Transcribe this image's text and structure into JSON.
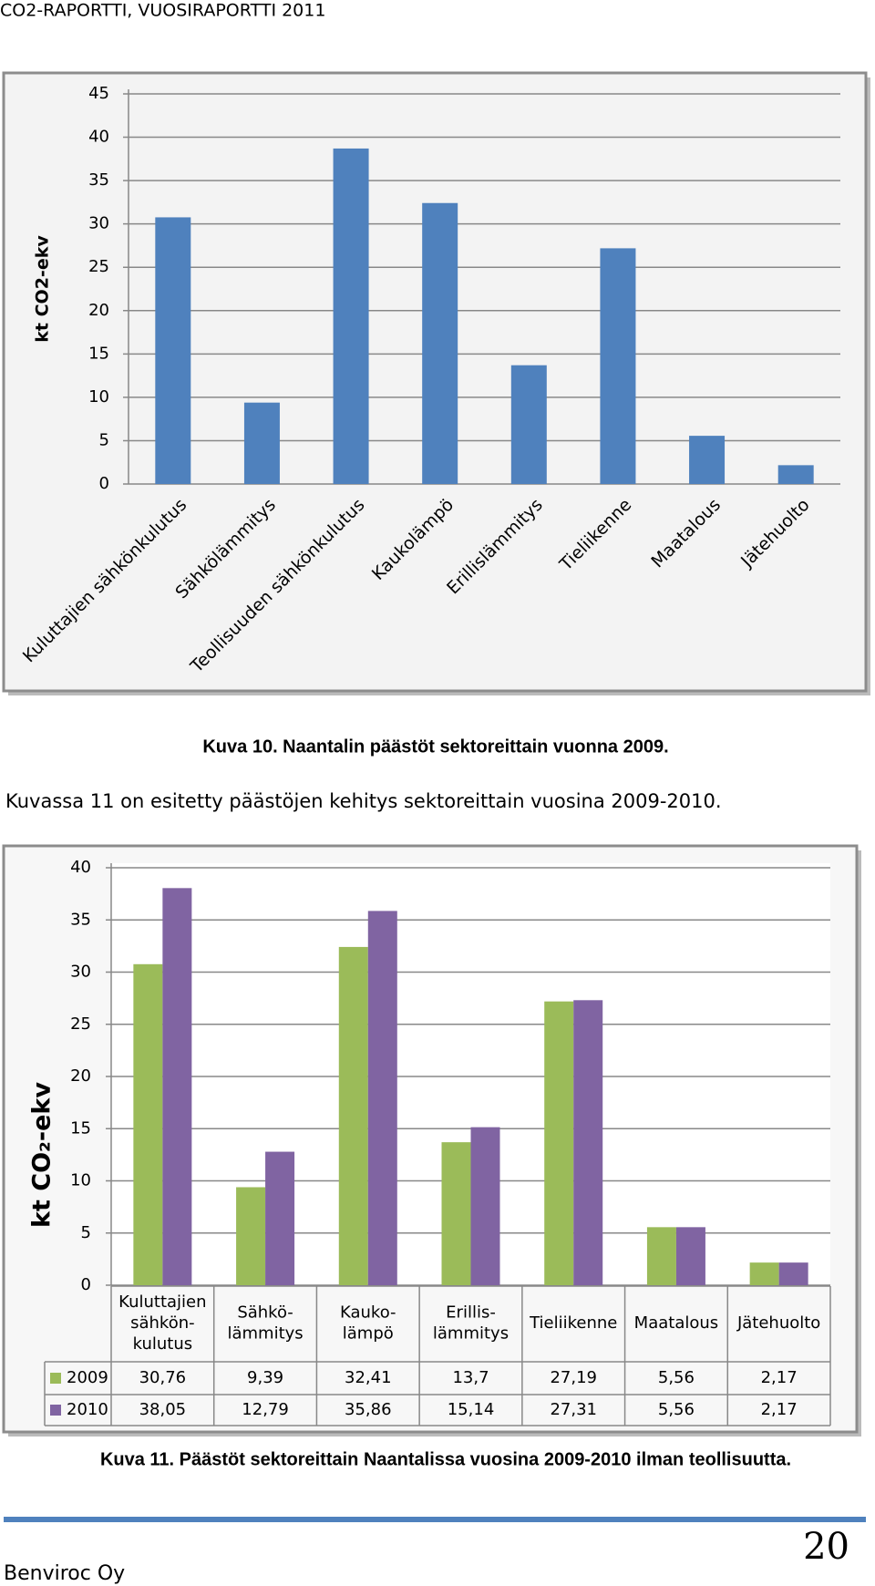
{
  "header": {
    "title": "CO2-RAPORTTI, VUOSIRAPORTTI 2011"
  },
  "chart_data": [
    {
      "type": "bar",
      "y_label": "kt CO2-ekv",
      "categories": [
        "Kuluttajien sähkönkulutus",
        "Sähkölämmitys",
        "Teollisuuden sähkönkulutus",
        "Kaukolämpö",
        "Erillislämmitys",
        "Tieliikenne",
        "Maatalous",
        "Jätehuolto"
      ],
      "values": [
        30.76,
        9.39,
        38.7,
        32.41,
        13.7,
        27.19,
        5.56,
        2.17
      ],
      "color": "#4f81bd",
      "ylim": [
        0,
        45
      ],
      "yticks": [
        0,
        5,
        10,
        15,
        20,
        25,
        30,
        35,
        40,
        45
      ],
      "grid": true
    },
    {
      "type": "bar",
      "y_label": "kt CO₂-ekv",
      "data_table": true,
      "categories": [
        "Kuluttajien\nsähkön-\nkulutus",
        "Sähkö-\nlämmitys",
        "Kauko-\nlämpö",
        "Erillis-\nlämmitys",
        "Tieliikenne",
        "Maatalous",
        "Jätehuolto"
      ],
      "series": [
        {
          "name": "2009",
          "color": "#9bbb59",
          "values": [
            30.76,
            9.39,
            32.41,
            13.7,
            27.19,
            5.56,
            2.17
          ],
          "value_labels": [
            "30,76",
            "9,39",
            "32,41",
            "13,7",
            "27,19",
            "5,56",
            "2,17"
          ]
        },
        {
          "name": "2010",
          "color": "#8064a2",
          "values": [
            38.05,
            12.79,
            35.86,
            15.14,
            27.31,
            5.56,
            2.17
          ],
          "value_labels": [
            "38,05",
            "12,79",
            "35,86",
            "15,14",
            "27,31",
            "5,56",
            "2,17"
          ]
        }
      ],
      "ylim": [
        0,
        40
      ],
      "yticks": [
        0,
        5,
        10,
        15,
        20,
        25,
        30,
        35,
        40
      ],
      "grid": true
    }
  ],
  "figure_captions": [
    "Kuva 10. Naantalin päästöt sektoreittain vuonna 2009.",
    "Kuva 11. Päästöt sektoreittain Naantalissa vuosina 2009-2010 ilman teollisuutta."
  ],
  "paragraph": "Kuvassa 11 on esitetty päästöjen kehitys sektoreittain vuosina 2009-2010.",
  "footer": {
    "company": "Benviroc Oy",
    "page_number": 20
  }
}
